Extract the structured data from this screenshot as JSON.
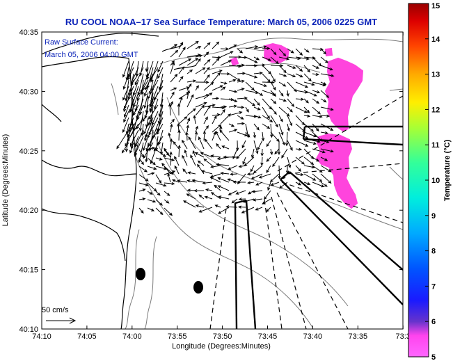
{
  "chart_data": {
    "type": "map",
    "title": "RU COOL  NOAA–17  Sea Surface Temperature:  March 05, 2006 0225 GMT",
    "annotation_lines": [
      "Raw Surface Current:",
      "March 05, 2006 04:00 GMT"
    ],
    "scale_label": "50 cm/s",
    "xlabel": "Longitude (Degrees:Minutes)",
    "ylabel": "Latitude (Degrees:Minutes)",
    "x_ticks": [
      "74:10",
      "74:05",
      "74:00",
      "73:55",
      "73:50",
      "73:45",
      "73:40",
      "73:35",
      "73:3"
    ],
    "y_ticks": [
      "40:35",
      "40:30",
      "40:25",
      "40:20",
      "40:15",
      "40:10"
    ],
    "colorbar": {
      "label": "Temperature (°C)",
      "min": 5,
      "max": 15,
      "ticks": [
        "5",
        "6",
        "7",
        "8",
        "9",
        "10",
        "11",
        "12",
        "13",
        "14",
        "15"
      ],
      "colors": [
        "#ff66ff",
        "#6633cc",
        "#0000ff",
        "#0066ff",
        "#00ccff",
        "#00ffcc",
        "#66ff66",
        "#ccff00",
        "#ffcc00",
        "#ff6600",
        "#ff0000",
        "#990000"
      ]
    },
    "sst_patch_color": "#ff44dd",
    "sst_value_shown": 5,
    "vector_field": "raw surface current arrows",
    "grid": false
  }
}
